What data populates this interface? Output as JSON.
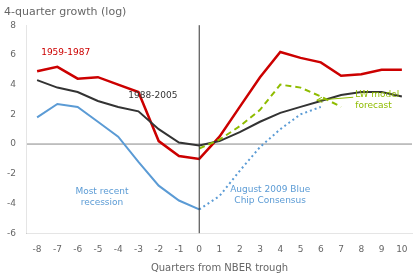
{
  "chart_data": {
    "type": "line",
    "title": "4-quarter growth (log)",
    "x_label": "Quarters from NBER trough",
    "xlim": [
      -8.5,
      10.5
    ],
    "ylim": [
      -6,
      8
    ],
    "xticks": [
      -8,
      -7,
      -6,
      -5,
      -4,
      -3,
      -2,
      -1,
      0,
      1,
      2,
      3,
      4,
      5,
      6,
      7,
      8,
      9,
      10
    ],
    "yticks": [
      -6,
      -4,
      -2,
      0,
      2,
      4,
      6,
      8
    ],
    "grid": false,
    "series": [
      {
        "color": "#cc0000",
        "line_style": "solid",
        "x": [
          -8,
          -7,
          -6,
          -5,
          -4,
          -3,
          -2,
          -1,
          0,
          1,
          2,
          3,
          4,
          5,
          6,
          7,
          8,
          9,
          10
        ],
        "values": [
          4.9,
          5.2,
          4.4,
          4.5,
          4.0,
          3.5,
          0.2,
          -0.8,
          -1.0,
          0.5,
          2.5,
          4.5,
          6.2,
          5.8,
          5.5,
          4.6,
          4.7,
          5.0,
          5.0
        ]
      },
      {
        "color": "#333333",
        "line_style": "solid",
        "x": [
          -8,
          -7,
          -6,
          -5,
          -4,
          -3,
          -2,
          -1,
          0,
          1,
          2,
          3,
          4,
          5,
          6,
          7,
          8,
          9,
          10
        ],
        "values": [
          4.3,
          3.8,
          3.5,
          2.9,
          2.5,
          2.2,
          1.0,
          0.1,
          -0.1,
          0.2,
          0.8,
          1.5,
          2.1,
          2.5,
          2.9,
          3.3,
          3.5,
          3.5,
          3.2
        ]
      },
      {
        "color": "#5b9bd5",
        "line_style": "solid",
        "x": [
          -8,
          -7,
          -6,
          -5,
          -4,
          -3,
          -2,
          -1,
          0
        ],
        "values": [
          1.8,
          2.7,
          2.5,
          1.5,
          0.5,
          -1.2,
          -2.8,
          -3.8,
          -4.4
        ]
      },
      {
        "color": "#5b9bd5",
        "line_style": "dotted",
        "x": [
          0,
          1,
          2,
          3,
          4,
          5,
          6
        ],
        "values": [
          -4.4,
          -3.5,
          -1.8,
          -0.2,
          1.0,
          2.0,
          2.5
        ]
      },
      {
        "color": "#8fbc00",
        "line_style": "dashed",
        "x": [
          0,
          1,
          2,
          3,
          4,
          5,
          6,
          7
        ],
        "values": [
          -0.3,
          0.3,
          1.2,
          2.3,
          4.0,
          3.8,
          3.2,
          2.5
        ]
      }
    ],
    "hlines": [
      0
    ],
    "vlines": [
      0
    ],
    "annotations": [
      {
        "text": "1959-1987",
        "x": -7.8,
        "y": 5.8,
        "color": "#cc0000"
      },
      {
        "text": "1988-2005",
        "x": -3.5,
        "y": 2.9,
        "color": "#333333"
      },
      {
        "text": "Most recent\nrecession",
        "x": -4.8,
        "y": -2.8,
        "color": "#5b9bd5"
      },
      {
        "text": "August 2009 Blue\nChip Consensus",
        "x": 3.5,
        "y": -2.7,
        "color": "#5b9bd5"
      },
      {
        "text": "LW model\nforecast",
        "x": 7.7,
        "y": 2.95,
        "color": "#8fbc00",
        "arrow": {
          "from": [
            7.6,
            3.15
          ],
          "to": [
            5.8,
            2.95
          ]
        }
      }
    ]
  }
}
